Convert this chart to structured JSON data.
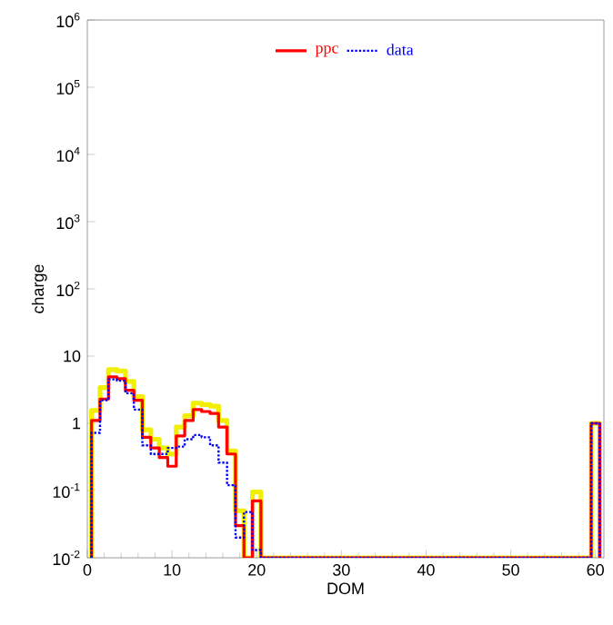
{
  "chart_data": {
    "type": "histogram",
    "xlabel": "DOM",
    "ylabel": "charge",
    "log": "y",
    "legend": "top",
    "xlim": [
      0,
      61
    ],
    "ylim": [
      0.01,
      1000000
    ],
    "xticks": [
      0,
      10,
      20,
      30,
      40,
      50,
      60
    ],
    "yticks": [
      {
        "value": 0.01,
        "label": "10$^{-2}$"
      },
      {
        "value": 0.1,
        "label": "10$^{-1}$"
      },
      1,
      10,
      {
        "value": 100,
        "label": "10$^{2}$"
      },
      {
        "value": 1000,
        "label": "10$^{3}$"
      },
      {
        "value": 10000,
        "label": "10$^{4}$"
      },
      {
        "value": 100000,
        "label": "10$^{5}$"
      },
      {
        "value": 1000000,
        "label": "10$^{6}$"
      }
    ],
    "bins": [
      0.5,
      1.5,
      2.5,
      3.5,
      4.5,
      5.5,
      6.5,
      7.5,
      8.5,
      9.5,
      10.5,
      11.5,
      12.5,
      13.5,
      14.5,
      15.5,
      16.5,
      17.5,
      18.5,
      19.5,
      20.5,
      21.5,
      22.5,
      23.5,
      24.5,
      25.5,
      26.5,
      27.5,
      28.5,
      29.5,
      30.5,
      31.5,
      32.5,
      33.5,
      34.5,
      35.5,
      36.5,
      37.5,
      38.5,
      39.5,
      40.5,
      41.5,
      42.5,
      43.5,
      44.5,
      45.5,
      46.5,
      47.5,
      48.5,
      49.5,
      50.5,
      51.5,
      52.5,
      53.5,
      54.5,
      55.5,
      56.5,
      57.5,
      58.5,
      59.5,
      60.5
    ],
    "series": [
      {
        "color": "#f0f000",
        "line_style": "solid",
        "values": [
          1.55,
          3.4,
          6.3,
          6.0,
          4.2,
          2.5,
          0.8,
          0.58,
          0.43,
          0.35,
          0.88,
          1.3,
          2.0,
          1.9,
          1.8,
          1.1,
          0.39,
          0.05,
          null,
          0.095,
          null,
          null,
          null,
          null,
          null,
          null,
          null,
          null,
          null,
          null,
          null,
          null,
          null,
          null,
          null,
          null,
          null,
          null,
          null,
          null,
          null,
          null,
          null,
          null,
          null,
          null,
          null,
          null,
          null,
          null,
          null,
          null,
          null,
          null,
          null,
          null,
          null,
          null,
          null,
          1
        ]
      },
      {
        "name": "ppc",
        "color": "#ff0000",
        "line_style": "solid",
        "values": [
          1.1,
          2.3,
          4.9,
          4.6,
          3.1,
          2.2,
          0.62,
          0.43,
          0.31,
          0.23,
          0.65,
          1.1,
          1.6,
          1.5,
          1.4,
          0.88,
          0.35,
          0.03,
          null,
          0.07,
          null,
          null,
          null,
          null,
          null,
          null,
          null,
          null,
          null,
          null,
          null,
          null,
          null,
          null,
          null,
          null,
          null,
          null,
          null,
          null,
          null,
          null,
          null,
          null,
          null,
          null,
          null,
          null,
          null,
          null,
          null,
          null,
          null,
          null,
          null,
          null,
          null,
          null,
          null,
          1
        ]
      },
      {
        "name": "data",
        "color": "#0000ff",
        "line_style": "dotted",
        "values": [
          0.72,
          2.2,
          4.5,
          4.3,
          2.8,
          1.6,
          0.47,
          0.35,
          0.35,
          0.43,
          0.45,
          0.58,
          0.67,
          0.62,
          0.47,
          0.26,
          0.12,
          0.02,
          0.048,
          0.013,
          null,
          null,
          null,
          null,
          null,
          null,
          null,
          null,
          null,
          null,
          null,
          null,
          null,
          null,
          null,
          null,
          null,
          null,
          null,
          null,
          null,
          null,
          null,
          null,
          null,
          null,
          null,
          null,
          null,
          null,
          null,
          null,
          null,
          null,
          null,
          null,
          null,
          null,
          null,
          1
        ]
      }
    ]
  }
}
